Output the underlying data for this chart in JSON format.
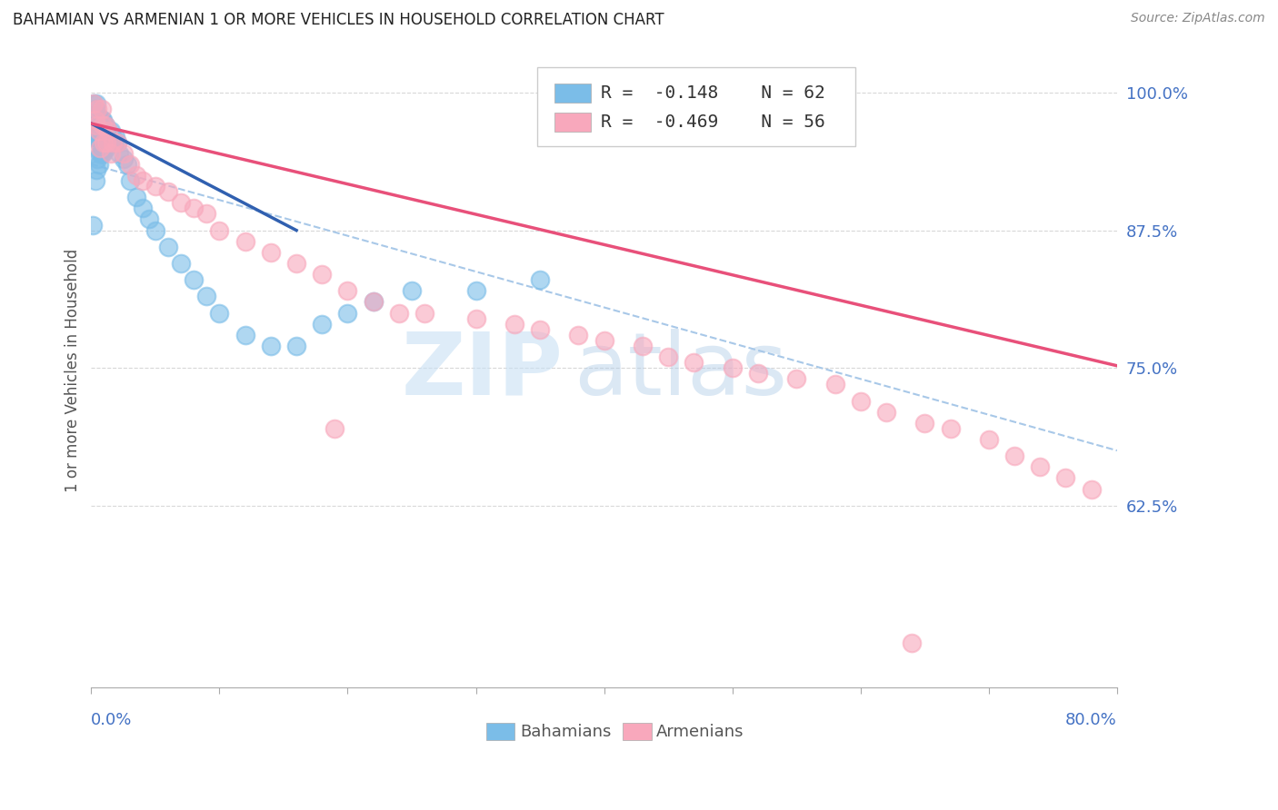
{
  "title": "BAHAMIAN VS ARMENIAN 1 OR MORE VEHICLES IN HOUSEHOLD CORRELATION CHART",
  "source": "Source: ZipAtlas.com",
  "ylabel": "1 or more Vehicles in Household",
  "xlim": [
    0.0,
    0.8
  ],
  "ylim": [
    0.46,
    1.035
  ],
  "yticks": [
    0.625,
    0.75,
    0.875,
    1.0
  ],
  "ytick_labels": [
    "62.5%",
    "75.0%",
    "87.5%",
    "100.0%"
  ],
  "bahamian_color": "#7bbde8",
  "armenian_color": "#f8a8bc",
  "bahamian_line_color": "#3060b0",
  "armenian_line_color": "#e8507a",
  "dashed_line_color": "#a8c8e8",
  "watermark_zip_color": "#c8e0f4",
  "watermark_atlas_color": "#b0cce8",
  "grid_color": "#d8d8d8",
  "axis_label_color": "#4472C4",
  "text_color": "#555555",
  "bahamian_x": [
    0.001,
    0.002,
    0.002,
    0.003,
    0.003,
    0.003,
    0.004,
    0.004,
    0.004,
    0.005,
    0.005,
    0.005,
    0.006,
    0.006,
    0.006,
    0.007,
    0.007,
    0.007,
    0.008,
    0.008,
    0.008,
    0.009,
    0.009,
    0.009,
    0.01,
    0.01,
    0.011,
    0.011,
    0.012,
    0.012,
    0.013,
    0.013,
    0.014,
    0.015,
    0.015,
    0.016,
    0.017,
    0.018,
    0.019,
    0.02,
    0.022,
    0.025,
    0.028,
    0.03,
    0.035,
    0.04,
    0.045,
    0.05,
    0.06,
    0.07,
    0.08,
    0.09,
    0.1,
    0.12,
    0.14,
    0.16,
    0.18,
    0.2,
    0.22,
    0.25,
    0.3,
    0.35
  ],
  "bahamian_y": [
    0.88,
    0.96,
    0.99,
    0.92,
    0.96,
    0.985,
    0.93,
    0.965,
    0.99,
    0.94,
    0.965,
    0.98,
    0.935,
    0.955,
    0.975,
    0.945,
    0.96,
    0.975,
    0.945,
    0.96,
    0.975,
    0.945,
    0.96,
    0.975,
    0.95,
    0.97,
    0.955,
    0.97,
    0.95,
    0.965,
    0.955,
    0.965,
    0.96,
    0.955,
    0.965,
    0.955,
    0.96,
    0.955,
    0.96,
    0.955,
    0.945,
    0.94,
    0.935,
    0.92,
    0.905,
    0.895,
    0.885,
    0.875,
    0.86,
    0.845,
    0.83,
    0.815,
    0.8,
    0.78,
    0.77,
    0.77,
    0.79,
    0.8,
    0.81,
    0.82,
    0.82,
    0.83
  ],
  "armenian_x": [
    0.002,
    0.003,
    0.004,
    0.005,
    0.006,
    0.007,
    0.008,
    0.009,
    0.01,
    0.011,
    0.012,
    0.013,
    0.015,
    0.017,
    0.02,
    0.025,
    0.03,
    0.035,
    0.04,
    0.05,
    0.06,
    0.07,
    0.08,
    0.09,
    0.1,
    0.12,
    0.14,
    0.16,
    0.18,
    0.2,
    0.22,
    0.24,
    0.26,
    0.3,
    0.33,
    0.35,
    0.38,
    0.4,
    0.43,
    0.45,
    0.47,
    0.5,
    0.52,
    0.55,
    0.58,
    0.6,
    0.62,
    0.65,
    0.67,
    0.7,
    0.72,
    0.74,
    0.76,
    0.78,
    0.64,
    0.19
  ],
  "armenian_y": [
    0.99,
    0.975,
    0.97,
    0.985,
    0.965,
    0.95,
    0.985,
    0.97,
    0.955,
    0.97,
    0.955,
    0.965,
    0.945,
    0.955,
    0.955,
    0.945,
    0.935,
    0.925,
    0.92,
    0.915,
    0.91,
    0.9,
    0.895,
    0.89,
    0.875,
    0.865,
    0.855,
    0.845,
    0.835,
    0.82,
    0.81,
    0.8,
    0.8,
    0.795,
    0.79,
    0.785,
    0.78,
    0.775,
    0.77,
    0.76,
    0.755,
    0.75,
    0.745,
    0.74,
    0.735,
    0.72,
    0.71,
    0.7,
    0.695,
    0.685,
    0.67,
    0.66,
    0.65,
    0.64,
    0.5,
    0.695
  ],
  "bah_line_x": [
    0.0,
    0.16
  ],
  "bah_line_y": [
    0.972,
    0.875
  ],
  "arm_line_x": [
    0.0,
    0.8
  ],
  "arm_line_y": [
    0.972,
    0.752
  ],
  "dash_line_x": [
    0.0,
    0.8
  ],
  "dash_line_y": [
    0.935,
    0.675
  ]
}
